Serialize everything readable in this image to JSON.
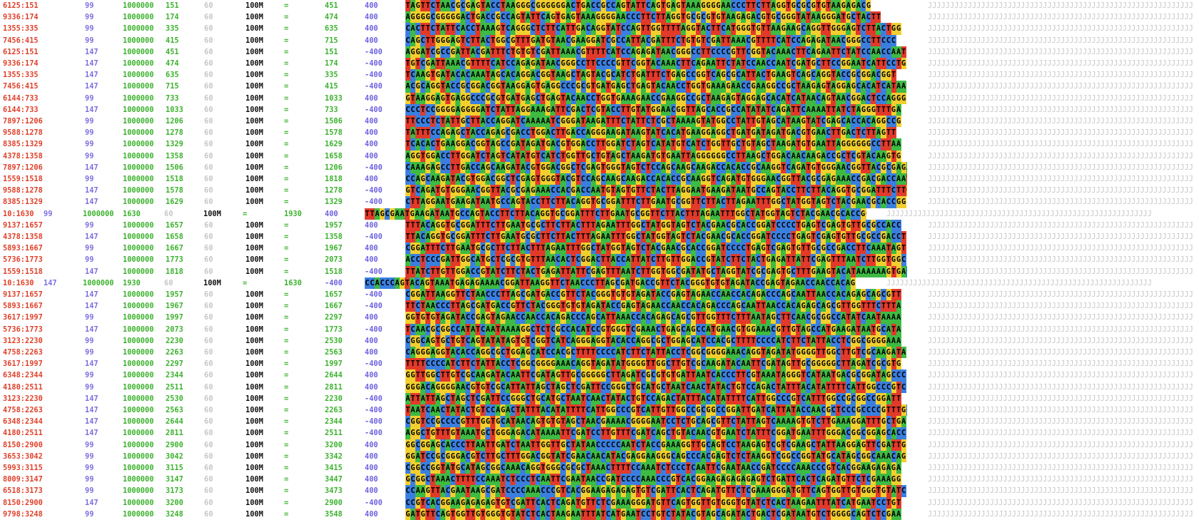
{
  "colors": {
    "name": "#e0402a",
    "flag": "#7b6fe0",
    "score": "#3cb22e",
    "A": "#3dbb43",
    "C": "#3a7fe0",
    "G": "#f2cf2e",
    "T": "#e23a2a"
  },
  "rows": [
    {
      "name": "6125:151",
      "flag": "99",
      "score": "1000000",
      "pos": "151",
      "chk": "60",
      "cigar": "100M",
      "eq": "=",
      "mpos": "451",
      "tlen": "400",
      "seq": "TAGTTCTAACGCGAGTACCTAAGGGCGGGGGGACTGACCGCCAGTATTCAGTGAGTAAAGGGGAACCCTTCTTAGGTGCGCGTGTAAGAGACG"
    },
    {
      "name": "9336:174",
      "flag": "99",
      "score": "1000000",
      "pos": "174",
      "chk": "60",
      "cigar": "100M",
      "eq": "=",
      "mpos": "474",
      "tlen": "400",
      "seq": "AGGGGCGGGGGACTGACCGCCAGTATTCAGTGAGTAAAGGGGAACCCTTCTTAGGTGCGCGTGTAAGAGACGTGCGGGTATAAGGGATGCTACTT"
    },
    {
      "name": "1355:335",
      "flag": "99",
      "score": "1000000",
      "pos": "335",
      "chk": "60",
      "cigar": "100M",
      "eq": "=",
      "mpos": "635",
      "tlen": "400",
      "seq": "CACTTCTATTCACCTAAAGTCAGGGCTCTTCATTGACAGGTATCCAGTTGGTTTTAGGTACTTCATGGGTGTTAAGAAGCAGGTTGGGAGTCTTACTGG"
    },
    {
      "name": "7456:415",
      "flag": "99",
      "score": "1000000",
      "pos": "415",
      "chk": "60",
      "cigar": "100M",
      "eq": "=",
      "mpos": "715",
      "tlen": "400",
      "seq": "CAGCTTGGGAGTCTTACTGGCGTTTGATGTAACGAAGGATCGCCATTACGATTTCTGTGTCGATTAAACGTTTTCATCCAGAGATAACGGGCCTTCCC"
    },
    {
      "name": "6125:151",
      "flag": "147",
      "score": "1000000",
      "pos": "451",
      "chk": "60",
      "cigar": "100M",
      "eq": "=",
      "mpos": "151",
      "tlen": "-400",
      "seq": "AGGATCGCCGATTACGATTTCTGTGTCGATTAAACGTTTTCATCCAGAGATAACGGGCCTTCCCCGTTCGGTACAAACTTCAGAATTCTATCCAACCAAT"
    },
    {
      "name": "9336:174",
      "flag": "147",
      "score": "1000000",
      "pos": "474",
      "chk": "60",
      "cigar": "100M",
      "eq": "=",
      "mpos": "174",
      "tlen": "-400",
      "seq": "TGTCGATTAAACGTTTTCATCCAGAGATAACGGGCCTTCCCCGTTCGGTACAAACTTCAGAATTCTATCCAACCAATCGATGCTTCCGGAATCATTCCTG"
    },
    {
      "name": "1355:335",
      "flag": "147",
      "score": "1000000",
      "pos": "635",
      "chk": "60",
      "cigar": "100M",
      "eq": "=",
      "mpos": "335",
      "tlen": "-400",
      "seq": "TCAAGTGATACACAAATAGCACAGGACGGTAAGCTAGTACGCATCTGATTTCTGAGCCGGTCAGCGCATTACTGAAGTCAGCAGGTACCGCGGACGGT"
    },
    {
      "name": "7456:415",
      "flag": "147",
      "score": "1000000",
      "pos": "715",
      "chk": "60",
      "cigar": "100M",
      "eq": "=",
      "mpos": "415",
      "tlen": "-400",
      "seq": "ACGCAGGTACCGCGGACGGTAAGGAGTGAGGCCCGCGTGATGAGCTGAGTACAACCTGGTGAAAGAACCGAAGGCCGCTAAGAGTAGGAGCACATCATAA"
    },
    {
      "name": "6144:733",
      "flag": "99",
      "score": "1000000",
      "pos": "733",
      "chk": "60",
      "cigar": "100M",
      "eq": "=",
      "mpos": "1033",
      "tlen": "400",
      "seq": "GTAAGGAGTGAGGCCCGCGTGATGAGCTGAGTACAACCTGGTGAAAGAACCGAAGGCCGCTAAGAGTAGGAGCACATCATAACAGTAACGGACTCCAGGG"
    },
    {
      "name": "6144:733",
      "flag": "147",
      "score": "1000000",
      "pos": "1033",
      "chk": "60",
      "cigar": "100M",
      "eq": "=",
      "mpos": "733",
      "tlen": "-400",
      "seq": "CCCTCCGGGGAGGGGATCTATTAGGAAAGATTCGACTCGTACCTTGTATGGAACGGTTAGCACCGCCATATATCAGATTCAAAATTATCTAGGGTTTGA"
    },
    {
      "name": "7897:1206",
      "flag": "99",
      "score": "1000000",
      "pos": "1206",
      "chk": "60",
      "cigar": "100M",
      "eq": "=",
      "mpos": "1506",
      "tlen": "400",
      "seq": "TTCCCTCTATTGCTTACCAGGATCAAAAATCGGGATAAGATTTCTATTCTCGCTAAAAGTATGGCCTATTGTAGCATAAGTATCGAGCACCACAGGCCG"
    },
    {
      "name": "9588:1278",
      "flag": "99",
      "score": "1000000",
      "pos": "1278",
      "chk": "60",
      "cigar": "100M",
      "eq": "=",
      "mpos": "1578",
      "tlen": "400",
      "seq": "TATTTCCAGAGCTACCAGAGCGACCTGGACTTGACCAGGGAAGATAAGTATCACATGAAGGAGGCTGATGATAGATGACGTGAACTTGACTCTTAGTT"
    },
    {
      "name": "8385:1329",
      "flag": "99",
      "score": "1000000",
      "pos": "1329",
      "chk": "60",
      "cigar": "100M",
      "eq": "=",
      "mpos": "1629",
      "tlen": "400",
      "seq": "TCACACTGAAGGACGGTAGCCGATAGATGACGTGGACCTTGGATCTAGTCATATGTCATCTGGTTGCTGTAGCTAAGATGTGAATTAGGGGGGCCTTAA"
    },
    {
      "name": "4378:1358",
      "flag": "99",
      "score": "1000000",
      "pos": "1358",
      "chk": "60",
      "cigar": "100M",
      "eq": "=",
      "mpos": "1658",
      "tlen": "400",
      "seq": "AGGTGGACCTTGGATCTAGTCATATGTCATCTGGTTGCTGTAGCTAAGATGTGAATTAGGGGGGCCTTAAGCTGGACAACAAGACCGCTCGTACAAGTG"
    },
    {
      "name": "7897:1206",
      "flag": "147",
      "score": "1000000",
      "pos": "1506",
      "chk": "60",
      "cigar": "100M",
      "eq": "=",
      "mpos": "1206",
      "tlen": "-400",
      "seq": "CAAAGAGCCTTGACCAGCAAGATACGTGGACGGCTCGAGTGGGTAGTCTCCAGCAAGCAAGACCACACCGCAAGGTCAGATGTGGGAACGGTTACGCGAGAA"
    },
    {
      "name": "1559:1518",
      "flag": "99",
      "score": "1000000",
      "pos": "1518",
      "chk": "60",
      "cigar": "100M",
      "eq": "=",
      "mpos": "1818",
      "tlen": "400",
      "seq": "CCAGCAAGATACGTGGACGGCTCGAGTGGGTACGTCCAGCAAGCAAGACCACACCGCAAGGTCAGATGTGGGAACGGTTACGCGAGAAACCGACGACCAAT"
    },
    {
      "name": "9588:1278",
      "flag": "147",
      "score": "1000000",
      "pos": "1578",
      "chk": "60",
      "cigar": "100M",
      "eq": "=",
      "mpos": "1278",
      "tlen": "-400",
      "seq": "GTCAGATGTGGGAACGGTTACGCGAGAAACCACGACCAATGTAGTGTTCTACTTAGGAATGAAGATAATGCCAGTACCTTCTTACAGGTGCGGATTTCTTG"
    },
    {
      "name": "8385:1329",
      "flag": "147",
      "score": "1000000",
      "pos": "1629",
      "chk": "60",
      "cigar": "100M",
      "eq": "=",
      "mpos": "1329",
      "tlen": "-400",
      "seq": "CTTAGGAATGAAGATAATGCCAGTACCTTCTTACAGGTGCGGATTTCTTGAATGCGGTTCTTACTTAGAATTTGGCTATGGTAGTCTACGAACGCACCGG"
    },
    {
      "name": "10:1630",
      "flag": "99",
      "score": "1000000",
      "pos": "1630",
      "chk": "60",
      "cigar": "100M",
      "eq": "=",
      "mpos": "1930",
      "tlen": "400",
      "seq": "TTAGCGAATGAAGATAATGCCAGTACCTTCTTACAGGTGCGGATTTCTTGAATGCGGTTCTTACTTTAGAATTTGGCTATGGTAGTCTACGAACGCACCGGA",
      "shift": true
    },
    {
      "name": "9137:1657",
      "flag": "99",
      "score": "1000000",
      "pos": "1657",
      "chk": "60",
      "cigar": "100M",
      "eq": "=",
      "mpos": "1957",
      "tlen": "400",
      "seq": "TTTACAGGTGCGGATTTCTTGAATGCGCTTCTTACTTTAGAATTTGGCTATGGTAGTCTACGAACGCACCGGATCCCCTGAGTCGAGTGTTGCGCCACC"
    },
    {
      "name": "4378:1358",
      "flag": "147",
      "score": "1000000",
      "pos": "1658",
      "chk": "60",
      "cigar": "100M",
      "eq": "=",
      "mpos": "1358",
      "tlen": "-400",
      "seq": "TTACAGGTGCGGATTTCTTGAATGCGCTTCTTACTTTAGAATTTGGCTATGGTAGTCTACGAACGCACCGGATCCCCTGAGTCGAGTGTTGCGCCGACCT"
    },
    {
      "name": "5893:1667",
      "flag": "99",
      "score": "1000000",
      "pos": "1667",
      "chk": "60",
      "cigar": "100M",
      "eq": "=",
      "mpos": "1967",
      "tlen": "400",
      "seq": "CGGATTTCTTGAATGCGCTTCTTACTTTAGAATTTGGCTATGGTAGTCTACGAACGCACCGGATCCCCTGAGTCGAGTGTTGCGCCGACCTTCAAATAGT"
    },
    {
      "name": "5736:1773",
      "flag": "99",
      "score": "1000000",
      "pos": "1773",
      "chk": "60",
      "cigar": "100M",
      "eq": "=",
      "mpos": "2073",
      "tlen": "400",
      "seq": "ACCTCCCGATTGGCATGCTCGCGTGTTTAACACTCGGACTTACCATTATCTTGTTGGACCGTATCTTCTACTGAGATTATTCGAGTTTAATCTTGGTGGC"
    },
    {
      "name": "1559:1518",
      "flag": "147",
      "score": "1000000",
      "pos": "1818",
      "chk": "60",
      "cigar": "100M",
      "eq": "=",
      "mpos": "1518",
      "tlen": "-400",
      "seq": "TTATCTTGTTGGACCGTATCTTCTACTGAGATTATTCGAGTTTAATCTTGGTGGCGATATGCTAGGTATCGCGAGTGCTTTGAAGTACATAAAAAAGTGACCGCA"
    },
    {
      "name": "10:1630",
      "flag": "147",
      "score": "1000000",
      "pos": "1930",
      "chk": "60",
      "cigar": "100M",
      "eq": "=",
      "mpos": "1630",
      "tlen": "-400",
      "seq": "CCACCCAGTACAGTAAATGAGAGAAAACGGATTAAGGTTCTAACCCTTAGCGATGACCGTTCTACGGGTGTGTAGATACCGAGTAGAACCAACCACAG",
      "shift": true
    },
    {
      "name": "9137:1657",
      "flag": "147",
      "score": "1000000",
      "pos": "1957",
      "chk": "60",
      "cigar": "100M",
      "eq": "=",
      "mpos": "1657",
      "tlen": "-400",
      "seq": "CGGATTAAGGTTCTAACCCTTAGCGATGACCGTTCTACGGGTGTGTAGATACCGAGTAGAACCAACCACAGACCCAGCAATTAACCACAGAGCAGCGTT"
    },
    {
      "name": "5893:1667",
      "flag": "147",
      "score": "1000000",
      "pos": "1967",
      "chk": "60",
      "cigar": "100M",
      "eq": "=",
      "mpos": "1667",
      "tlen": "-400",
      "seq": "TTCTAACCCTTAGCGATGACCGTTCTACGGGTGTGTAGATACCGAGTAGAACCAACCACAGACCCAGCAATTAACCACAGAGCAGCGTTGGTTTCTTTA"
    },
    {
      "name": "3617:1997",
      "flag": "99",
      "score": "1000000",
      "pos": "1997",
      "chk": "60",
      "cigar": "100M",
      "eq": "=",
      "mpos": "2297",
      "tlen": "400",
      "seq": "GGTGTGTAGATACCGAGTAGAACCAACCACAGACCCAGCATTAAACCACAGAGCAGCGTTGGTTTCTTTAATAGCTTCAACGCGGCCATATCAATAAAA"
    },
    {
      "name": "5736:1773",
      "flag": "147",
      "score": "1000000",
      "pos": "2073",
      "chk": "60",
      "cigar": "100M",
      "eq": "=",
      "mpos": "1773",
      "tlen": "-400",
      "seq": "TCAACGCGGCCATATCAATAAAAGGCTCTCGCCACATCCGTGGGTCGAAACTGAGCAGCCATGAACGTGGAAACGTTGTAGCCATGAAGATAATGCATA"
    },
    {
      "name": "3123:2230",
      "flag": "99",
      "score": "1000000",
      "pos": "2230",
      "chk": "60",
      "cigar": "100M",
      "eq": "=",
      "mpos": "2530",
      "tlen": "400",
      "seq": "CGGCAGTGCTGTCAGTATATAGTGTCGGTCATCAGGGAGGTACACCAGGCGCTGGAGCATCCACGCTTTTCCCCATCTTCTATTACCTCGGCGGGGAAA"
    },
    {
      "name": "4758:2263",
      "flag": "99",
      "score": "1000000",
      "pos": "2263",
      "chk": "60",
      "cigar": "100M",
      "eq": "=",
      "mpos": "2563",
      "tlen": "400",
      "seq": "CAGGGAGGTACACCAGGCGCTGGAGCATCCACGCTTTTCCCCATCTTCTATTACCTCGGCGGGGAAACAGGTAGATATGGGGTTGGCTTGTCGCAAGATA"
    },
    {
      "name": "3617:1997",
      "flag": "147",
      "score": "1000000",
      "pos": "2297",
      "chk": "60",
      "cigar": "100M",
      "eq": "=",
      "mpos": "1997",
      "tlen": "-400",
      "seq": "TTTTCCCCATCTTCTATTACCTCGGCGGGGAAACAGGTAGATATGGGGTTGGCTTGTCGCAAGATACAATTCGATAGTTGCGGGGGCTTAGATCGCGTG"
    },
    {
      "name": "6348:2344",
      "flag": "99",
      "score": "1000000",
      "pos": "2344",
      "chk": "60",
      "cigar": "100M",
      "eq": "=",
      "mpos": "2644",
      "tlen": "400",
      "seq": "GGTTGGCTTGTCGCAAGATACAATTCGATAGTTGCGGGGGCTTAGATCGCGTGTGATTAATCACCCTTCGTAAATAGGGTCATAATGACGCGGATAGCCC"
    },
    {
      "name": "4180:2511",
      "flag": "99",
      "score": "1000000",
      "pos": "2511",
      "chk": "60",
      "cigar": "100M",
      "eq": "=",
      "mpos": "2811",
      "tlen": "400",
      "seq": "GGGACAGGGGAACGTGTCGCATTATTAGCTAGCTCGATTCCGGGCTGCATGCTAATCAACTATACTGTCCAGACTATTTACATATTTTCATTGGCCCGTC"
    },
    {
      "name": "3123:2230",
      "flag": "147",
      "score": "1000000",
      "pos": "2530",
      "chk": "60",
      "cigar": "100M",
      "eq": "=",
      "mpos": "2230",
      "tlen": "-400",
      "seq": "ATTATTAGCTAGCTCGATTCCGGGCTGCATGCTAATCAACTATACTGTCCAGACTATTTACATATTTTCATTGGCCCGTCATTTGGCCGCGGCCGGATT"
    },
    {
      "name": "4758:2263",
      "flag": "147",
      "score": "1000000",
      "pos": "2563",
      "chk": "60",
      "cigar": "100M",
      "eq": "=",
      "mpos": "2263",
      "tlen": "-400",
      "seq": "TAATCAACTATACTGTCCAGACTATTTACATATTTTCATTGGCCCGTCATTGTTGGCCGCGGCCGGATTGATCATTATACCAACGCTCCCGCCCCGTTTGCT"
    },
    {
      "name": "6348:2344",
      "flag": "147",
      "score": "1000000",
      "pos": "2644",
      "chk": "60",
      "cigar": "100M",
      "eq": "=",
      "mpos": "2344",
      "tlen": "-400",
      "seq": "CGGTCCGCCCCGTTTGGTGCATAACAGTGTGTAGCTAACGAAAACGGGGAATCCTCTGCAGCGTTCTATTAGTCAAAAGTGTCTTGAAAGGATTTGCTGA"
    },
    {
      "name": "4180:2511",
      "flag": "147",
      "score": "1000000",
      "pos": "2811",
      "chk": "60",
      "cigar": "100M",
      "eq": "=",
      "mpos": "2511",
      "tlen": "-400",
      "seq": "AGGCTGTTTGTAAATGCTGGGAGACATAAAATTCGATCCTTGTTTCGATCAGCTGTACAACGTGAATCTATTTCGGATGAATTTGGGACGGCGGAGCACC"
    },
    {
      "name": "8150:2900",
      "flag": "99",
      "score": "1000000",
      "pos": "2900",
      "chk": "60",
      "cigar": "100M",
      "eq": "=",
      "mpos": "3200",
      "tlen": "400",
      "seq": "GGCGGAGCACCCTTAATTGATCTAATTGGTTGCTATAACCCCCAATCTACCGAAAGGTTGCAGTCCTAAGAGTCGTCGAAGCTATTAAGGAGTTCGATTG"
    },
    {
      "name": "3653:3042",
      "flag": "99",
      "score": "1000000",
      "pos": "3042",
      "chk": "60",
      "cigar": "100M",
      "eq": "=",
      "mpos": "3342",
      "tlen": "400",
      "seq": "GGATCCGCGGGACGTCTTGCTTTGGACGGTATCGAACAACATACGAGGAAGGGCAGCCCACGAGTCTCTAAGGTCGGCCGGTATGCATAGCGGCAAACAG"
    },
    {
      "name": "5993:3115",
      "flag": "99",
      "score": "1000000",
      "pos": "3115",
      "chk": "60",
      "cigar": "100M",
      "eq": "=",
      "mpos": "3415",
      "tlen": "400",
      "seq": "CGGCCGGTATGCATAGCGGCAAACAGGTGGGCGCGCTAAACTTTTCCAAATCTCCCTCAATTCGAATAACCGATCCCCAAACCCGTCACGGAAGAGAGA"
    },
    {
      "name": "8009:3147",
      "flag": "99",
      "score": "1000000",
      "pos": "3147",
      "chk": "60",
      "cigar": "100M",
      "eq": "=",
      "mpos": "3447",
      "tlen": "400",
      "seq": "GCGGCTAAACTTTTCCAAATCTCCCTCAATTCGAATAACCGATCCCCAAACCCGTCACGGAAGAGAGAGAGTCTGATTCACTCAGATGTTCTCGAAAGG"
    },
    {
      "name": "6518:3173",
      "flag": "99",
      "score": "1000000",
      "pos": "3173",
      "chk": "60",
      "cigar": "100M",
      "eq": "=",
      "mpos": "3473",
      "tlen": "400",
      "seq": "CCAAGTTACGAATAAGCGATCCCCAAACCCGTCACGGAAGAGAGAGTGTCGATTCACTCAGATGTTCTCGAAAGGGATGTTCAGTGGTTGTGGGTGTATC"
    },
    {
      "name": "8150:2900",
      "flag": "147",
      "score": "1000000",
      "pos": "3200",
      "chk": "60",
      "cigar": "100M",
      "eq": "=",
      "mpos": "2900",
      "tlen": "-400",
      "seq": "CCGTCACGGAAGAGAGAGTGTCGATTCACTCAGATGTTCTCGAAAGGGATGTTCAGTGGTTGTGGGTGTATCTCACTAAGAATTTATCATGAATCCTGT"
    },
    {
      "name": "9798:3248",
      "flag": "99",
      "score": "1000000",
      "pos": "3248",
      "chk": "60",
      "cigar": "100M",
      "eq": "=",
      "mpos": "3548",
      "tlen": "400",
      "seq": "GATGTTCAGTGGTTGTGGGTGTATCTCACTAAGAATTTATCATGAATCCTGTCTATACGTAGCAGATACTGACTCGATAATGTCTGGGGCAGTCTCGAA"
    }
  ],
  "qual_char": "J"
}
